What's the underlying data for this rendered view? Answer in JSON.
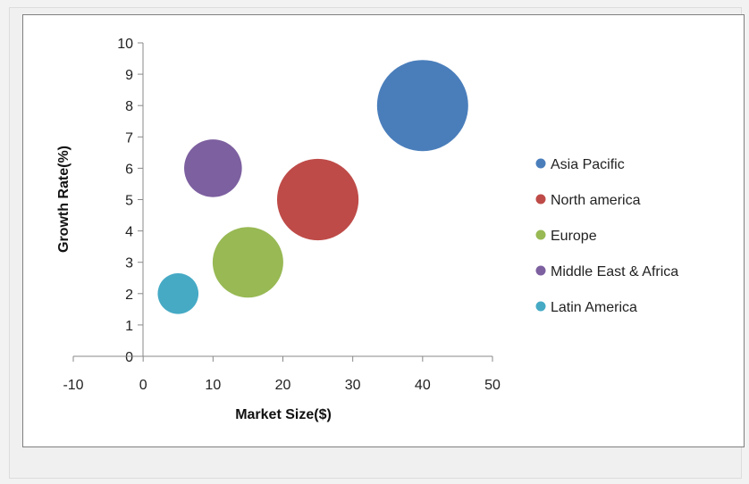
{
  "chart_data": {
    "type": "scatter",
    "subtype": "bubble",
    "xlabel": "Market Size($)",
    "ylabel": "Growth Rate(%)",
    "xlim": [
      -10,
      50
    ],
    "ylim": [
      0,
      10
    ],
    "x_ticks": [
      -10,
      0,
      10,
      20,
      30,
      40,
      50
    ],
    "y_ticks": [
      0,
      1,
      2,
      3,
      4,
      5,
      6,
      7,
      8,
      9,
      10
    ],
    "grid": false,
    "legend_position": "right",
    "series": [
      {
        "name": "Asia Pacific",
        "x": 40,
        "y": 8,
        "size": 50,
        "color": "#4a7ebb"
      },
      {
        "name": "North america",
        "x": 25,
        "y": 5,
        "size": 40,
        "color": "#be4b48"
      },
      {
        "name": "Europe",
        "x": 15,
        "y": 3,
        "size": 30,
        "color": "#98b954"
      },
      {
        "name": "Middle East & Africa",
        "x": 10,
        "y": 6,
        "size": 20,
        "color": "#7d60a0"
      },
      {
        "name": "Latin America",
        "x": 5,
        "y": 2,
        "size": 10,
        "color": "#46aac5"
      }
    ]
  }
}
